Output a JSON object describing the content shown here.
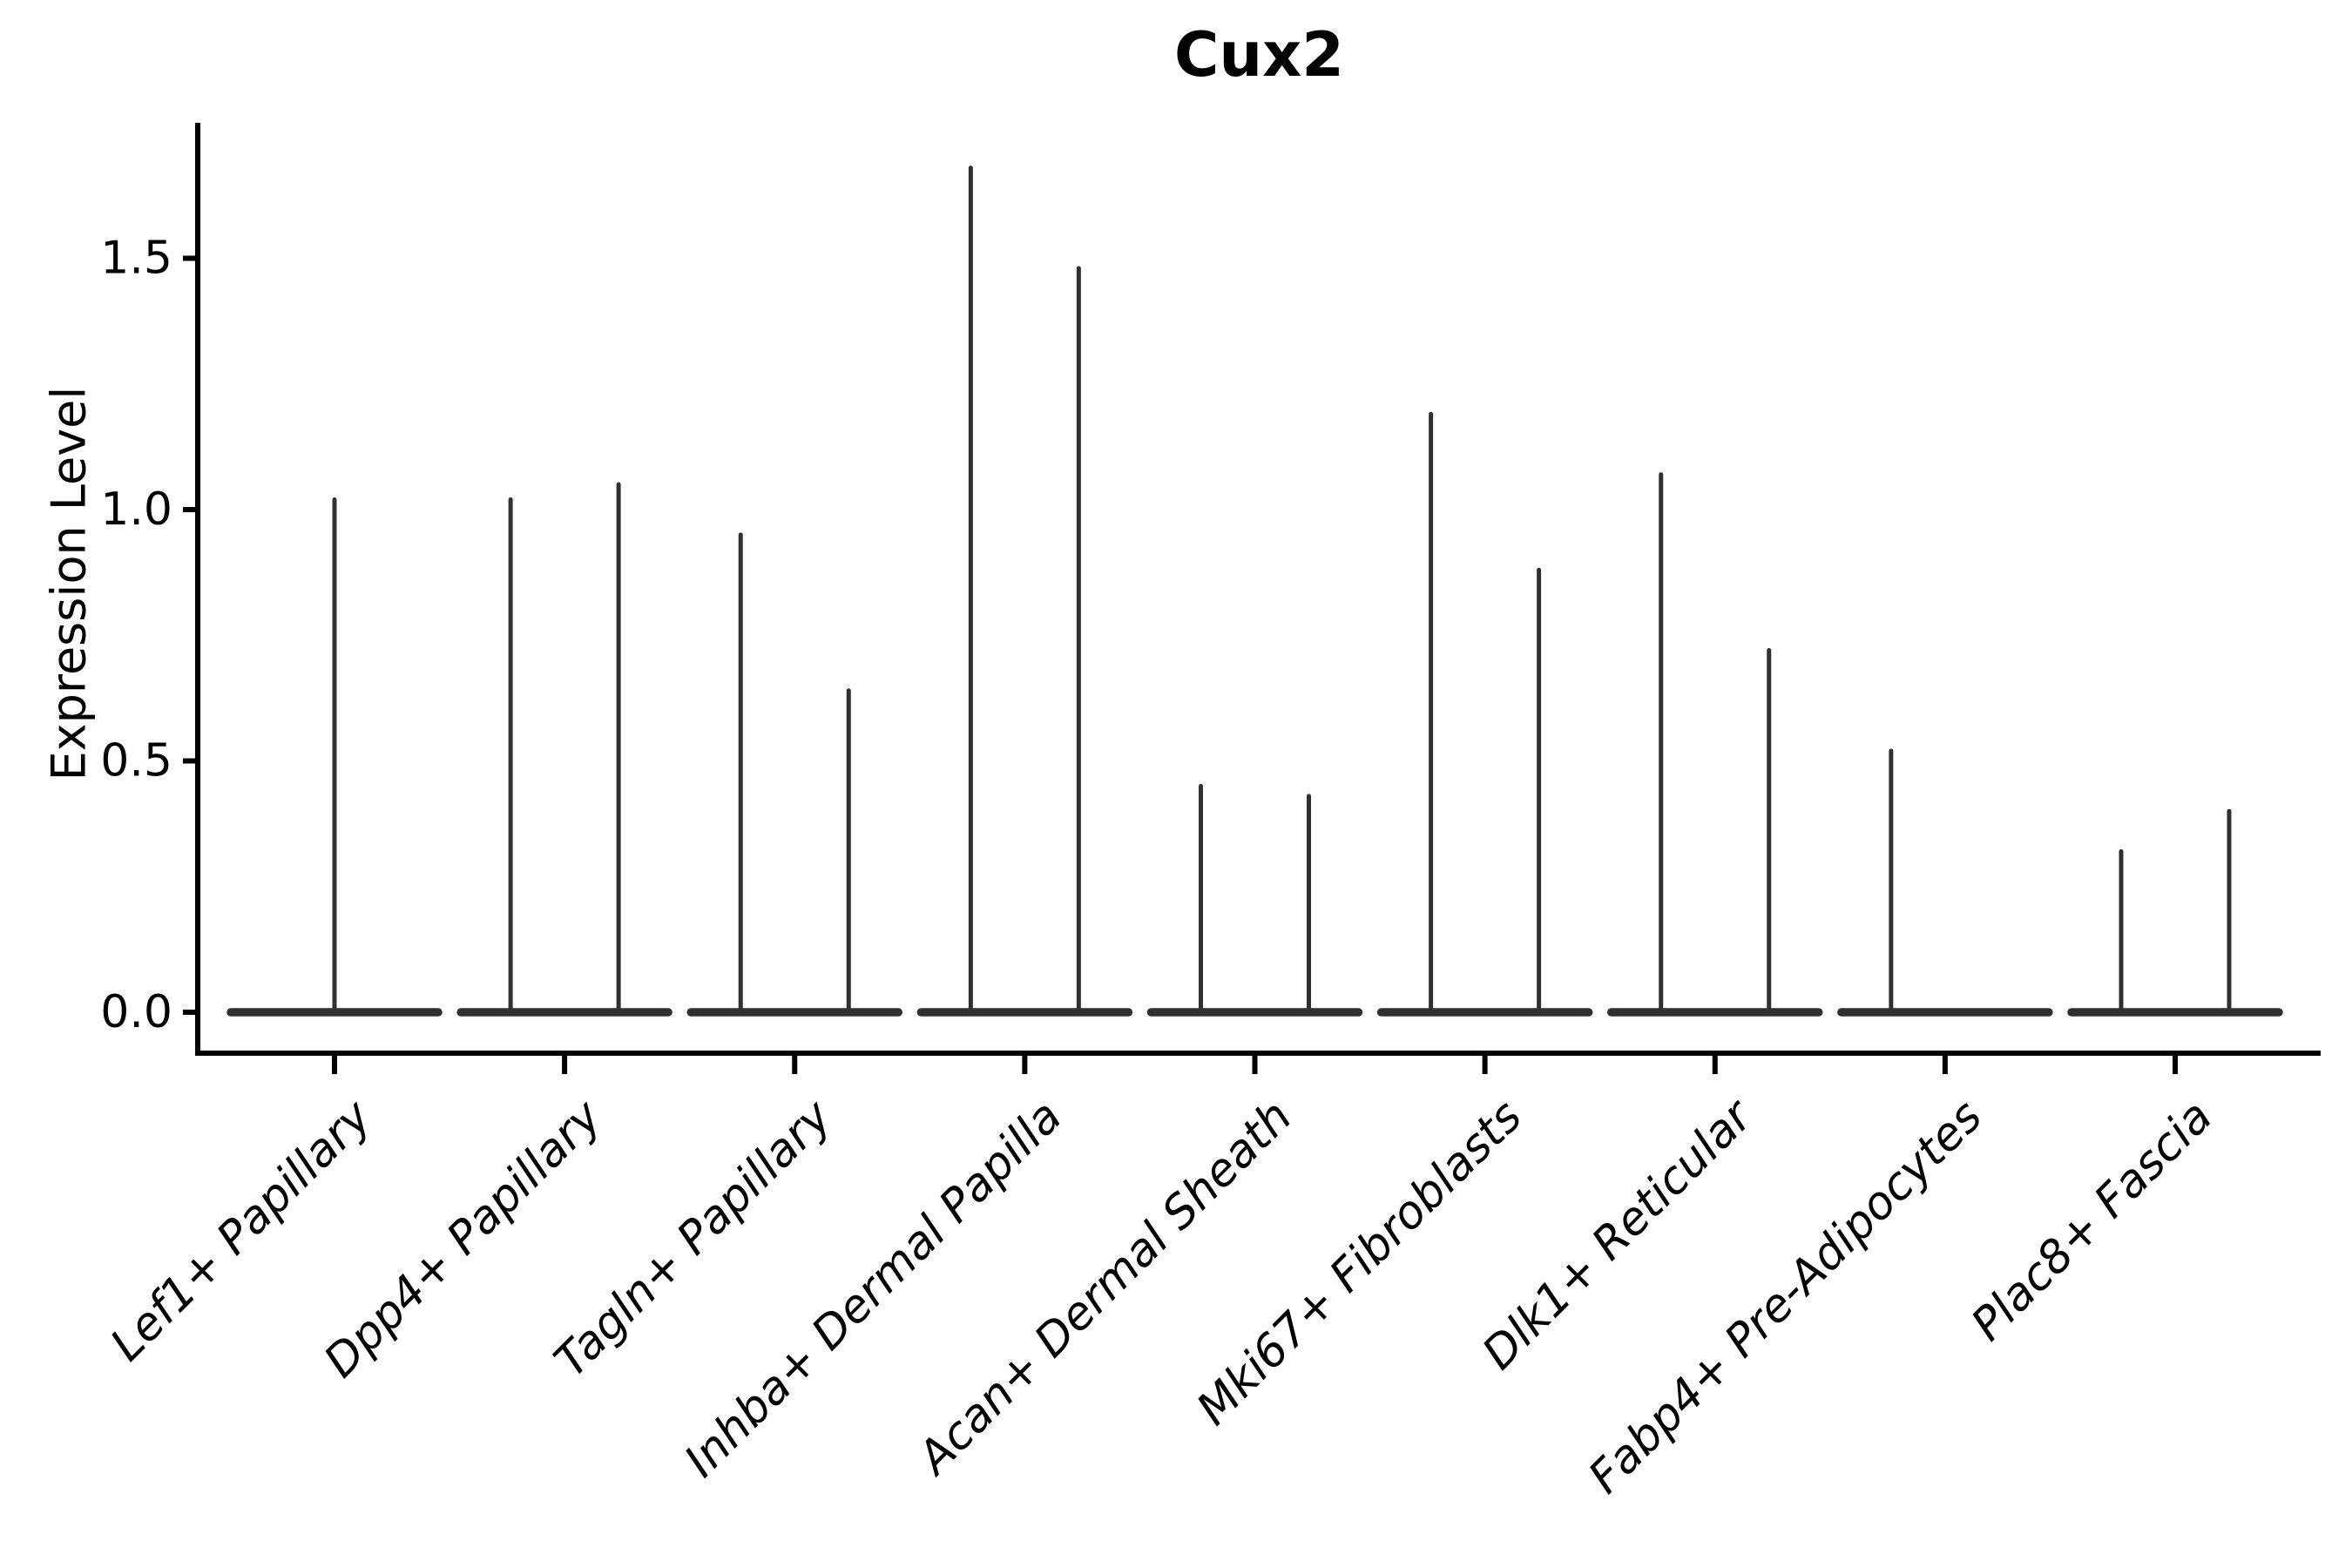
{
  "chart_data": {
    "type": "violin",
    "title": "Cux2",
    "xlabel": "",
    "ylabel": "Expression Level",
    "ylim": [
      -0.08,
      1.77
    ],
    "yticks": [
      0.0,
      0.5,
      1.0,
      1.5
    ],
    "grid": false,
    "legend": false,
    "background_color": "#ffffff",
    "violin_stroke_color": "#303030",
    "axis_color": "#000000",
    "baseline_value": 0.0,
    "categories": [
      "Lef1+ Papillary",
      "Dpp4+ Papillary",
      "Tagln+ Papillary",
      "Inhba+ Dermal Papilla",
      "Acan+ Dermal Sheath",
      "Mki67+ Fibroblasts",
      "Dlk1+ Reticular",
      "Fabp4+ Pre-Adipocytes",
      "Plac8+ Fascia"
    ],
    "violins": [
      {
        "category": "Lef1+ Papillary",
        "spikes": [
          {
            "position": "center",
            "peak": 1.02
          }
        ]
      },
      {
        "category": "Dpp4+ Papillary",
        "spikes": [
          {
            "position": "left",
            "peak": 1.02
          },
          {
            "position": "right",
            "peak": 1.05
          }
        ]
      },
      {
        "category": "Tagln+ Papillary",
        "spikes": [
          {
            "position": "left",
            "peak": 0.95
          },
          {
            "position": "right",
            "peak": 0.64
          }
        ]
      },
      {
        "category": "Inhba+ Dermal Papilla",
        "spikes": [
          {
            "position": "left",
            "peak": 1.68
          },
          {
            "position": "right",
            "peak": 1.48
          }
        ]
      },
      {
        "category": "Acan+ Dermal Sheath",
        "spikes": [
          {
            "position": "left",
            "peak": 0.45
          },
          {
            "position": "right",
            "peak": 0.43
          }
        ]
      },
      {
        "category": "Mki67+ Fibroblasts",
        "spikes": [
          {
            "position": "left",
            "peak": 1.19
          },
          {
            "position": "right",
            "peak": 0.88
          }
        ]
      },
      {
        "category": "Dlk1+ Reticular",
        "spikes": [
          {
            "position": "left",
            "peak": 1.07
          },
          {
            "position": "right",
            "peak": 0.72
          }
        ]
      },
      {
        "category": "Fabp4+ Pre-Adipocytes",
        "spikes": [
          {
            "position": "left",
            "peak": 0.52
          }
        ]
      },
      {
        "category": "Plac8+ Fascia",
        "spikes": [
          {
            "position": "left",
            "peak": 0.32
          },
          {
            "position": "right",
            "peak": 0.4
          }
        ]
      }
    ]
  }
}
